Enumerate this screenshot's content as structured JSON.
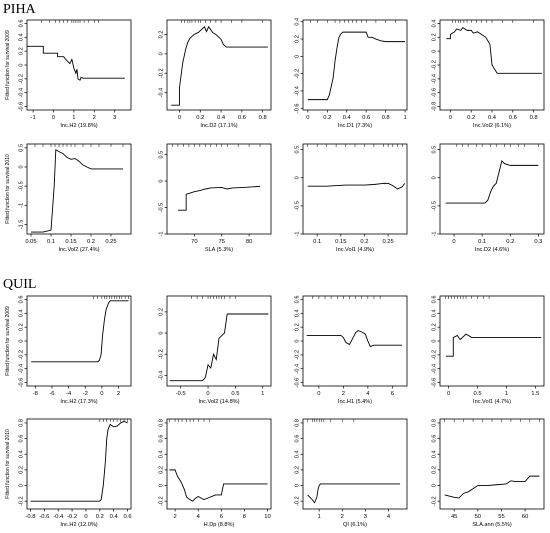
{
  "sections": [
    {
      "title": "PIHA"
    },
    {
      "title": "QUIL"
    }
  ],
  "chart_data": [
    {
      "type": "line",
      "xlabel": "Inc.H2 (19.8%)",
      "ylabel": "Fitted function for survival 2009",
      "xlim": [
        -1.3,
        3.8
      ],
      "ylim": [
        -0.65,
        0.65
      ],
      "xticks": [
        -1,
        0,
        1,
        2,
        3
      ],
      "yticks": [
        -0.6,
        -0.4,
        -0.2,
        0,
        0.2,
        0.4,
        0.6
      ],
      "rug": [
        -0.6,
        -0.2,
        0.1,
        0.3,
        0.5,
        0.7,
        0.9,
        1.0,
        1.1,
        1.2,
        1.3,
        1.5,
        1.7,
        2.0,
        2.2
      ],
      "x": [
        -1.3,
        -0.5,
        -0.5,
        0.2,
        0.2,
        0.5,
        0.6,
        0.8,
        0.9,
        1.0,
        1.1,
        1.15,
        1.2,
        1.3,
        1.35,
        1.45,
        1.5,
        3.5
      ],
      "y": [
        0.27,
        0.27,
        0.17,
        0.17,
        0.12,
        0.12,
        0.08,
        0.02,
        0.08,
        -0.05,
        -0.12,
        -0.06,
        -0.2,
        -0.22,
        -0.18,
        -0.19,
        -0.19,
        -0.19
      ]
    },
    {
      "type": "line",
      "xlabel": "Inc.D2 (17.1%)",
      "ylabel": "",
      "xlim": [
        -0.12,
        0.88
      ],
      "ylim": [
        -0.58,
        0.35
      ],
      "xticks": [
        0.0,
        0.2,
        0.4,
        0.6,
        0.8
      ],
      "yticks": [
        -0.4,
        -0.2,
        0.0,
        0.2
      ],
      "rug": [
        0.02,
        0.05,
        0.08,
        0.1,
        0.12,
        0.15,
        0.18,
        0.2,
        0.25,
        0.3,
        0.35,
        0.4,
        0.5,
        0.6,
        0.8
      ],
      "x": [
        -0.08,
        0.0,
        0.0,
        0.03,
        0.06,
        0.08,
        0.1,
        0.12,
        0.14,
        0.16,
        0.18,
        0.2,
        0.22,
        0.24,
        0.26,
        0.28,
        0.3,
        0.32,
        0.35,
        0.4,
        0.42,
        0.45,
        0.85
      ],
      "y": [
        -0.53,
        -0.53,
        -0.35,
        -0.1,
        0.05,
        0.12,
        0.16,
        0.18,
        0.2,
        0.21,
        0.22,
        0.24,
        0.26,
        0.28,
        0.23,
        0.28,
        0.25,
        0.22,
        0.2,
        0.15,
        0.1,
        0.07,
        0.07
      ]
    },
    {
      "type": "line",
      "xlabel": "Inc.D1 (7.3%)",
      "ylabel": "",
      "xlim": [
        -0.05,
        1.02
      ],
      "ylim": [
        -0.62,
        0.42
      ],
      "xticks": [
        0.0,
        0.2,
        0.4,
        0.6,
        0.8,
        1.0
      ],
      "yticks": [
        -0.6,
        -0.4,
        -0.2,
        0.0,
        0.2,
        0.4
      ],
      "rug": [
        0.03,
        0.1,
        0.2,
        0.28,
        0.33,
        0.38,
        0.42,
        0.46,
        0.5,
        0.55,
        0.6,
        0.7,
        0.8,
        0.9
      ],
      "x": [
        0.0,
        0.2,
        0.22,
        0.24,
        0.26,
        0.28,
        0.3,
        0.32,
        0.34,
        0.36,
        0.4,
        0.6,
        0.62,
        0.66,
        0.7,
        0.75,
        0.8,
        1.0
      ],
      "y": [
        -0.5,
        -0.5,
        -0.45,
        -0.35,
        -0.25,
        -0.05,
        0.1,
        0.22,
        0.26,
        0.28,
        0.28,
        0.28,
        0.22,
        0.22,
        0.2,
        0.18,
        0.17,
        0.17
      ]
    },
    {
      "type": "line",
      "xlabel": "Inc.Vol2 (6.1%)",
      "ylabel": "",
      "xlim": [
        -0.1,
        0.9
      ],
      "ylim": [
        -0.85,
        0.45
      ],
      "xticks": [
        0.0,
        0.2,
        0.4,
        0.6,
        0.8
      ],
      "yticks": [
        -0.8,
        -0.6,
        -0.4,
        -0.2,
        0.0,
        0.2,
        0.4
      ],
      "rug": [
        0.02,
        0.05,
        0.08,
        0.1,
        0.13,
        0.16,
        0.2,
        0.25,
        0.3,
        0.35,
        0.4,
        0.5,
        0.6,
        0.8
      ],
      "x": [
        -0.04,
        0.0,
        0.0,
        0.04,
        0.06,
        0.1,
        0.12,
        0.16,
        0.2,
        0.22,
        0.26,
        0.3,
        0.34,
        0.38,
        0.4,
        0.45,
        0.88
      ],
      "y": [
        0.18,
        0.18,
        0.24,
        0.28,
        0.32,
        0.3,
        0.34,
        0.3,
        0.3,
        0.26,
        0.28,
        0.24,
        0.2,
        0.1,
        -0.2,
        -0.32,
        -0.32
      ]
    },
    {
      "type": "line",
      "xlabel": "Inc.Vol2 (27.4%)",
      "ylabel": "Fitted function for survival 2010",
      "xlim": [
        0.04,
        0.3
      ],
      "ylim": [
        -1.75,
        0.6
      ],
      "xticks": [
        0.05,
        0.1,
        0.15,
        0.2,
        0.25
      ],
      "yticks": [
        -1.5,
        -1.0,
        -0.5,
        0.0,
        0.5
      ],
      "rug": [
        0.06,
        0.08,
        0.1,
        0.11,
        0.12,
        0.13,
        0.14,
        0.15,
        0.16,
        0.18,
        0.2,
        0.22,
        0.25,
        0.28
      ],
      "x": [
        0.05,
        0.08,
        0.1,
        0.108,
        0.112,
        0.12,
        0.13,
        0.14,
        0.15,
        0.16,
        0.17,
        0.18,
        0.19,
        0.2,
        0.22,
        0.28
      ],
      "y": [
        -1.7,
        -1.7,
        -1.65,
        -0.5,
        0.45,
        0.4,
        0.35,
        0.25,
        0.2,
        0.22,
        0.15,
        0.05,
        0.0,
        -0.05,
        -0.05,
        -0.05
      ]
    },
    {
      "type": "line",
      "xlabel": "SLA (5.3%)",
      "ylabel": "",
      "xlim": [
        65,
        84
      ],
      "ylim": [
        -1.0,
        0.7
      ],
      "xticks": [
        70,
        75,
        80
      ],
      "yticks": [
        -1.0,
        -0.5,
        0.0,
        0.5
      ],
      "rug": [
        66,
        67,
        68,
        69,
        70,
        71,
        72,
        73,
        74,
        75,
        76,
        78,
        80,
        82
      ],
      "x": [
        67,
        68.5,
        68.5,
        70,
        71,
        72,
        73,
        75,
        76,
        77,
        79,
        82
      ],
      "y": [
        -0.55,
        -0.55,
        -0.25,
        -0.2,
        -0.18,
        -0.15,
        -0.13,
        -0.12,
        -0.15,
        -0.13,
        -0.12,
        -0.1
      ]
    },
    {
      "type": "line",
      "xlabel": "Inc.Vol1 (4.9%)",
      "ylabel": "",
      "xlim": [
        0.07,
        0.29
      ],
      "ylim": [
        -1.0,
        0.6
      ],
      "xticks": [
        0.1,
        0.15,
        0.2,
        0.25
      ],
      "yticks": [
        -1.0,
        -0.5,
        0.0,
        0.5
      ],
      "rug": [
        0.08,
        0.1,
        0.12,
        0.14,
        0.16,
        0.18,
        0.2,
        0.22,
        0.24,
        0.25,
        0.26,
        0.27,
        0.28
      ],
      "x": [
        0.08,
        0.12,
        0.16,
        0.2,
        0.22,
        0.24,
        0.25,
        0.26,
        0.27,
        0.28,
        0.285
      ],
      "y": [
        -0.15,
        -0.15,
        -0.13,
        -0.13,
        -0.12,
        -0.1,
        -0.1,
        -0.14,
        -0.2,
        -0.16,
        -0.1
      ]
    },
    {
      "type": "line",
      "xlabel": "Inc.D2 (4.6%)",
      "ylabel": "",
      "xlim": [
        -0.05,
        0.32
      ],
      "ylim": [
        -1.0,
        0.6
      ],
      "xticks": [
        0.0,
        0.1,
        0.2,
        0.3
      ],
      "yticks": [
        -1.0,
        -0.5,
        0.0,
        0.5
      ],
      "rug": [
        0.01,
        0.03,
        0.05,
        0.08,
        0.1,
        0.13,
        0.15,
        0.18,
        0.2,
        0.23,
        0.25,
        0.3
      ],
      "x": [
        -0.03,
        0.11,
        0.12,
        0.13,
        0.14,
        0.15,
        0.16,
        0.17,
        0.18,
        0.2,
        0.3
      ],
      "y": [
        -0.45,
        -0.45,
        -0.4,
        -0.25,
        -0.15,
        -0.1,
        0.1,
        0.3,
        0.25,
        0.22,
        0.22
      ]
    },
    {
      "type": "line",
      "xlabel": "Inc.H2 (17.3%)",
      "ylabel": "Fitted function for survival 2009",
      "xlim": [
        -9,
        3.5
      ],
      "ylim": [
        -0.65,
        0.65
      ],
      "xticks": [
        -8,
        -6,
        -4,
        -2,
        0,
        2
      ],
      "yticks": [
        -0.6,
        -0.4,
        -0.2,
        0,
        0.2,
        0.4,
        0.6
      ],
      "rug": [
        -1.0,
        -0.5,
        0.0,
        0.3,
        0.6,
        0.9,
        1.2,
        1.5,
        1.8,
        2.1,
        2.4,
        2.8,
        3.2
      ],
      "x": [
        -8.5,
        -0.5,
        -0.3,
        -0.1,
        0.0,
        0.1,
        0.2,
        0.3,
        0.5,
        0.8,
        1.0,
        3.2
      ],
      "y": [
        -0.3,
        -0.3,
        -0.28,
        -0.2,
        -0.05,
        0.1,
        0.2,
        0.3,
        0.45,
        0.55,
        0.58,
        0.58
      ]
    },
    {
      "type": "line",
      "xlabel": "Inc.Vol2 (14.8%)",
      "ylabel": "",
      "xlim": [
        -0.75,
        1.15
      ],
      "ylim": [
        -0.5,
        0.35
      ],
      "xticks": [
        -0.5,
        0.0,
        0.5,
        1.0
      ],
      "yticks": [
        -0.4,
        -0.2,
        0.0,
        0.2
      ],
      "rug": [
        -0.3,
        -0.2,
        -0.1,
        0.0,
        0.05,
        0.1,
        0.15,
        0.2,
        0.25,
        0.3,
        0.4,
        0.5
      ],
      "x": [
        -0.7,
        -0.1,
        -0.05,
        0.0,
        0.05,
        0.1,
        0.15,
        0.2,
        0.3,
        0.35,
        0.4,
        1.1
      ],
      "y": [
        -0.45,
        -0.45,
        -0.42,
        -0.3,
        -0.33,
        -0.2,
        -0.25,
        -0.05,
        0.0,
        0.18,
        0.18,
        0.18
      ]
    },
    {
      "type": "line",
      "xlabel": "Inc.H1 (5.4%)",
      "ylabel": "",
      "xlim": [
        -1.3,
        7.2
      ],
      "ylim": [
        -0.65,
        0.65
      ],
      "xticks": [
        0,
        2,
        4,
        6
      ],
      "yticks": [
        -0.6,
        -0.4,
        -0.2,
        0.0,
        0.2,
        0.4,
        0.6
      ],
      "rug": [
        -0.5,
        0.0,
        0.5,
        1.0,
        1.5,
        2.0,
        2.5,
        3.0,
        3.5,
        4.0,
        4.5,
        5.0
      ],
      "x": [
        -1.0,
        1.8,
        2.0,
        2.2,
        2.5,
        2.8,
        3.0,
        3.2,
        3.5,
        3.8,
        4.0,
        4.2,
        4.5,
        6.8
      ],
      "y": [
        0.08,
        0.08,
        0.05,
        -0.02,
        -0.05,
        0.05,
        0.12,
        0.15,
        0.13,
        0.1,
        0.0,
        -0.08,
        -0.06,
        -0.06
      ]
    },
    {
      "type": "line",
      "xlabel": "Inc.Vol1 (4.7%)",
      "ylabel": "",
      "xlim": [
        -0.15,
        1.65
      ],
      "ylim": [
        -0.65,
        0.65
      ],
      "xticks": [
        0.0,
        0.5,
        1.0,
        1.5
      ],
      "yticks": [
        -0.6,
        -0.4,
        -0.2,
        0.0,
        0.2,
        0.4,
        0.6
      ],
      "rug": [
        -0.05,
        0.0,
        0.05,
        0.1,
        0.15,
        0.2,
        0.25,
        0.3,
        0.4,
        0.5,
        0.6,
        0.7
      ],
      "x": [
        -0.05,
        0.08,
        0.08,
        0.15,
        0.2,
        0.3,
        0.4,
        0.5,
        0.6,
        1.6
      ],
      "y": [
        -0.22,
        -0.22,
        0.05,
        0.08,
        0.02,
        0.1,
        0.05,
        0.05,
        0.05,
        0.05
      ]
    },
    {
      "type": "line",
      "xlabel": "Inc.H2 (12.0%)",
      "ylabel": "Fitted function for survival 2010",
      "xlim": [
        -0.85,
        0.65
      ],
      "ylim": [
        -0.3,
        0.85
      ],
      "xticks": [
        -0.8,
        -0.6,
        -0.4,
        -0.2,
        0.0,
        0.2,
        0.4,
        0.6
      ],
      "yticks": [
        -0.2,
        0.0,
        0.2,
        0.4,
        0.6,
        0.8
      ],
      "rug": [
        0.2,
        0.25,
        0.3,
        0.35,
        0.4,
        0.45,
        0.5,
        0.55,
        0.6
      ],
      "x": [
        -0.8,
        0.2,
        0.22,
        0.25,
        0.28,
        0.3,
        0.32,
        0.35,
        0.4,
        0.45,
        0.5,
        0.55,
        0.6
      ],
      "y": [
        -0.2,
        -0.2,
        -0.18,
        0.0,
        0.3,
        0.6,
        0.72,
        0.78,
        0.75,
        0.76,
        0.8,
        0.82,
        0.8
      ]
    },
    {
      "type": "line",
      "xlabel": "H.Dp (8.8%)",
      "ylabel": "",
      "xlim": [
        1.3,
        10.3
      ],
      "ylim": [
        -0.3,
        0.85
      ],
      "xticks": [
        2,
        4,
        6,
        8,
        10
      ],
      "yticks": [
        -0.2,
        0.0,
        0.2,
        0.4,
        0.6,
        0.8
      ],
      "rug": [
        1.5,
        2.0,
        2.3,
        2.6,
        3.0,
        3.3,
        3.6,
        4.0,
        4.5,
        5.0
      ],
      "x": [
        1.5,
        2.0,
        2.2,
        2.5,
        2.8,
        3.0,
        3.3,
        3.5,
        3.8,
        4.0,
        4.5,
        5.0,
        5.5,
        6.0,
        6.2,
        10.0
      ],
      "y": [
        0.2,
        0.2,
        0.12,
        0.05,
        -0.05,
        -0.15,
        -0.18,
        -0.2,
        -0.16,
        -0.14,
        -0.18,
        -0.15,
        -0.12,
        -0.12,
        0.02,
        0.02
      ]
    },
    {
      "type": "line",
      "xlabel": "QI (6.1%)",
      "ylabel": "",
      "xlim": [
        0.3,
        4.8
      ],
      "ylim": [
        -0.3,
        0.85
      ],
      "xticks": [
        1,
        2,
        3,
        4
      ],
      "yticks": [
        -0.2,
        0.0,
        0.2,
        0.4,
        0.6,
        0.8
      ],
      "rug": [
        0.5,
        0.7,
        0.8,
        0.9,
        1.0,
        1.1,
        1.2,
        1.5,
        2.0,
        2.5
      ],
      "x": [
        0.5,
        0.7,
        0.8,
        0.9,
        0.95,
        1.0,
        1.05,
        1.1,
        4.5
      ],
      "y": [
        -0.12,
        -0.18,
        -0.22,
        -0.15,
        -0.05,
        0.0,
        0.02,
        0.02,
        0.02
      ]
    },
    {
      "type": "line",
      "xlabel": "SLA.ann (5.5%)",
      "ylabel": "",
      "xlim": [
        42,
        64
      ],
      "ylim": [
        -0.3,
        0.85
      ],
      "xticks": [
        45,
        50,
        55,
        60
      ],
      "yticks": [
        -0.2,
        0.0,
        0.2,
        0.4,
        0.6,
        0.8
      ],
      "rug": [
        43,
        45,
        47,
        49,
        51,
        53,
        55,
        57,
        59,
        61,
        63
      ],
      "x": [
        43,
        45,
        46,
        47,
        48,
        49,
        50,
        52,
        54,
        56,
        57,
        58,
        60,
        61,
        63
      ],
      "y": [
        -0.12,
        -0.15,
        -0.16,
        -0.1,
        -0.08,
        -0.04,
        0.0,
        0.0,
        0.01,
        0.02,
        0.06,
        0.05,
        0.05,
        0.12,
        0.12
      ]
    }
  ]
}
